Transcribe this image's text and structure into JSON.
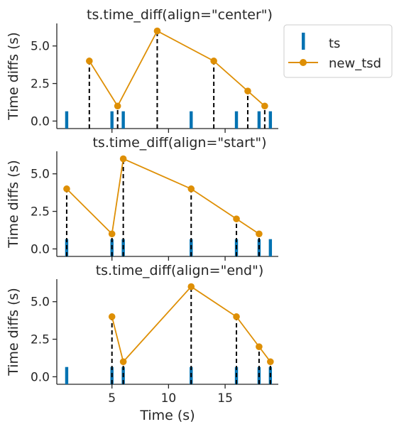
{
  "colors": {
    "ts": "#0072b2",
    "new_tsd": "#de8f05",
    "axis": "#262626",
    "guide": "#000000"
  },
  "legend": {
    "entries": [
      "ts",
      "new_tsd"
    ],
    "placement": "outside upper-right"
  },
  "chart_data": [
    {
      "type": "line",
      "title": "ts.time_diff(align=\"center\")",
      "ylabel": "Time diffs (s)",
      "xlabel": "",
      "ylim": [
        -0.5,
        6.5
      ],
      "yticks": [
        "0.0",
        "2.5",
        "5.0"
      ],
      "ytick_values": [
        0,
        2.5,
        5
      ],
      "xlim": [
        0,
        19.7
      ],
      "xticks": [
        "5",
        "10",
        "15"
      ],
      "xtick_values": [
        5,
        10,
        15
      ],
      "show_xtick_labels": false,
      "ts_times": [
        1,
        5,
        6,
        12,
        16,
        18,
        19
      ],
      "series": [
        {
          "name": "new_tsd",
          "x": [
            3,
            5.5,
            9,
            14,
            17,
            18.5
          ],
          "y": [
            4,
            1,
            6,
            4,
            2,
            1
          ]
        }
      ]
    },
    {
      "type": "line",
      "title": "ts.time_diff(align=\"start\")",
      "ylabel": "Time diffs (s)",
      "xlabel": "",
      "ylim": [
        -0.5,
        6.5
      ],
      "yticks": [
        "0.0",
        "2.5",
        "5.0"
      ],
      "ytick_values": [
        0,
        2.5,
        5
      ],
      "xlim": [
        0,
        19.7
      ],
      "xticks": [
        "5",
        "10",
        "15"
      ],
      "xtick_values": [
        5,
        10,
        15
      ],
      "show_xtick_labels": false,
      "ts_times": [
        1,
        5,
        6,
        12,
        16,
        18,
        19
      ],
      "series": [
        {
          "name": "new_tsd",
          "x": [
            1,
            5,
            6,
            12,
            16,
            18
          ],
          "y": [
            4,
            1,
            6,
            4,
            2,
            1
          ]
        }
      ]
    },
    {
      "type": "line",
      "title": "ts.time_diff(align=\"end\")",
      "ylabel": "Time diffs (s)",
      "xlabel": "Time (s)",
      "ylim": [
        -0.5,
        6.5
      ],
      "yticks": [
        "0.0",
        "2.5",
        "5.0"
      ],
      "ytick_values": [
        0,
        2.5,
        5
      ],
      "xlim": [
        0,
        19.7
      ],
      "xticks": [
        "5",
        "10",
        "15"
      ],
      "xtick_values": [
        5,
        10,
        15
      ],
      "show_xtick_labels": true,
      "ts_times": [
        1,
        5,
        6,
        12,
        16,
        18,
        19
      ],
      "series": [
        {
          "name": "new_tsd",
          "x": [
            5,
            6,
            12,
            16,
            18,
            19
          ],
          "y": [
            4,
            1,
            6,
            4,
            2,
            1
          ]
        }
      ]
    }
  ]
}
